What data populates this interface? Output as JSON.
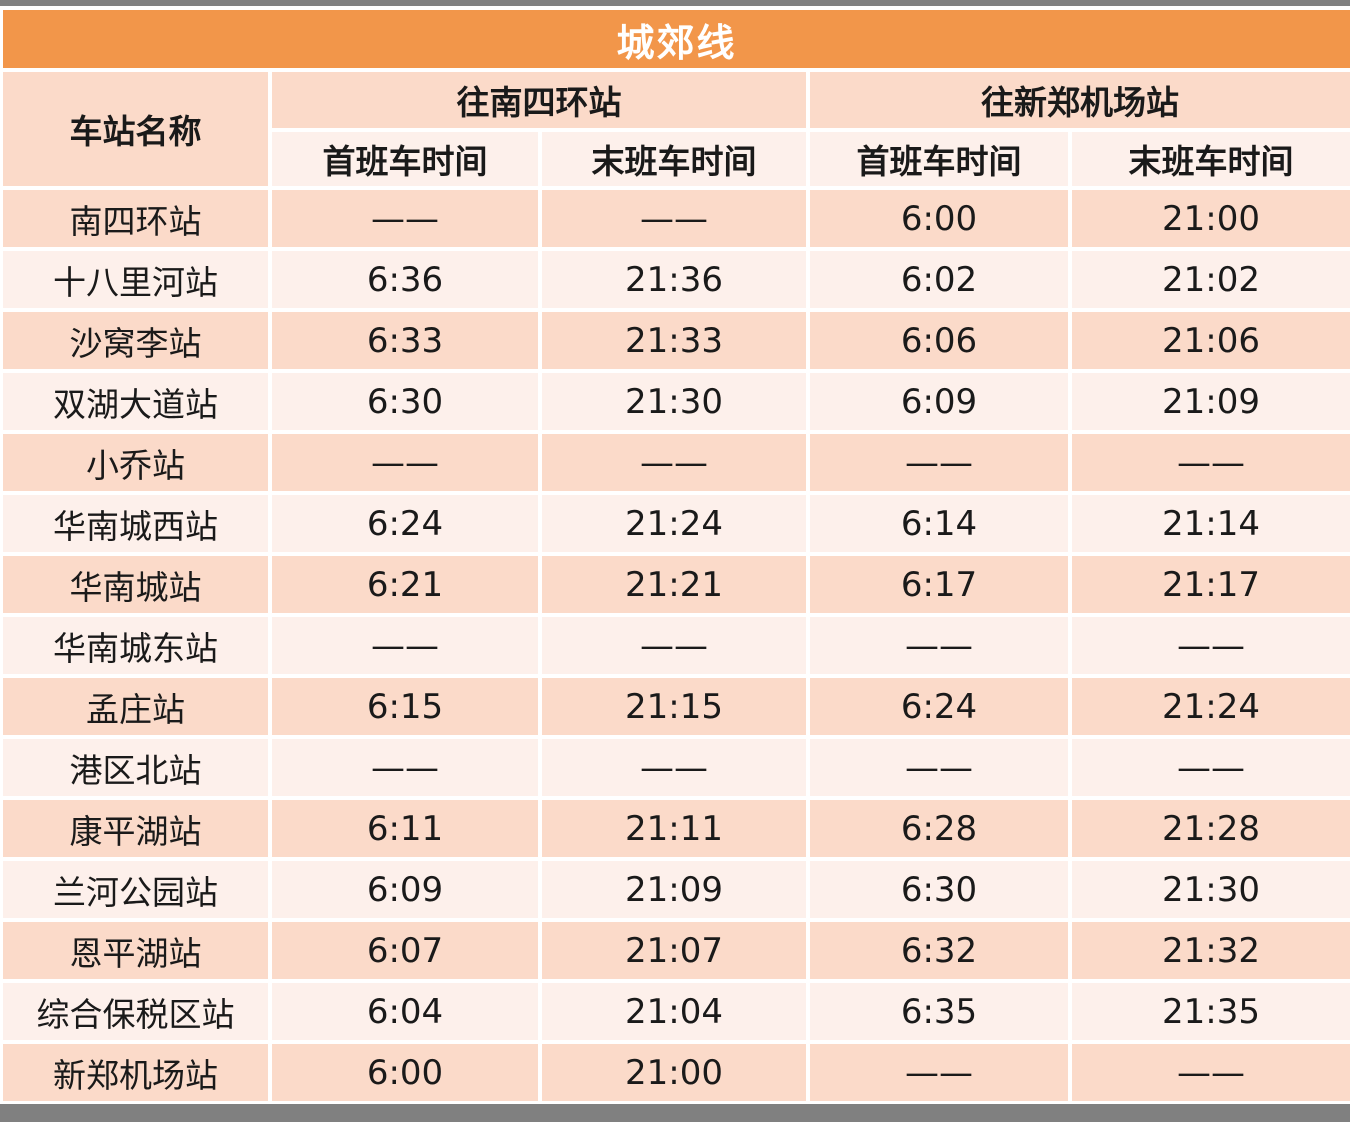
{
  "chart_data": {
    "type": "table",
    "title": "城郊线",
    "station_header": "车站名称",
    "direction_groups": [
      {
        "label": "往南四环站",
        "columns": [
          "首班车时间",
          "末班车时间"
        ]
      },
      {
        "label": "往新郑机场站",
        "columns": [
          "首班车时间",
          "末班车时间"
        ]
      }
    ],
    "no_service_placeholder": "——",
    "rows": [
      {
        "station": "南四环站",
        "times": [
          "——",
          "——",
          "6:00",
          "21:00"
        ]
      },
      {
        "station": "十八里河站",
        "times": [
          "6:36",
          "21:36",
          "6:02",
          "21:02"
        ]
      },
      {
        "station": "沙窝李站",
        "times": [
          "6:33",
          "21:33",
          "6:06",
          "21:06"
        ]
      },
      {
        "station": "双湖大道站",
        "times": [
          "6:30",
          "21:30",
          "6:09",
          "21:09"
        ]
      },
      {
        "station": "小乔站",
        "times": [
          "——",
          "——",
          "——",
          "——"
        ]
      },
      {
        "station": "华南城西站",
        "times": [
          "6:24",
          "21:24",
          "6:14",
          "21:14"
        ]
      },
      {
        "station": "华南城站",
        "times": [
          "6:21",
          "21:21",
          "6:17",
          "21:17"
        ]
      },
      {
        "station": "华南城东站",
        "times": [
          "——",
          "——",
          "——",
          "——"
        ]
      },
      {
        "station": "孟庄站",
        "times": [
          "6:15",
          "21:15",
          "6:24",
          "21:24"
        ]
      },
      {
        "station": "港区北站",
        "times": [
          "——",
          "——",
          "——",
          "——"
        ]
      },
      {
        "station": "康平湖站",
        "times": [
          "6:11",
          "21:11",
          "6:28",
          "21:28"
        ]
      },
      {
        "station": "兰河公园站",
        "times": [
          "6:09",
          "21:09",
          "6:30",
          "21:30"
        ]
      },
      {
        "station": "恩平湖站",
        "times": [
          "6:07",
          "21:07",
          "6:32",
          "21:32"
        ]
      },
      {
        "station": "综合保税区站",
        "times": [
          "6:04",
          "21:04",
          "6:35",
          "21:35"
        ]
      },
      {
        "station": "新郑机场站",
        "times": [
          "6:00",
          "21:00",
          "——",
          "——"
        ]
      }
    ]
  },
  "colors": {
    "accent_orange": "#F2964A",
    "band_dark": "#FBDAC9",
    "band_light": "#FDF0EB",
    "frame_gray": "#808080",
    "title_text": "#FFFFFF",
    "body_text": "#1A1A1A"
  }
}
